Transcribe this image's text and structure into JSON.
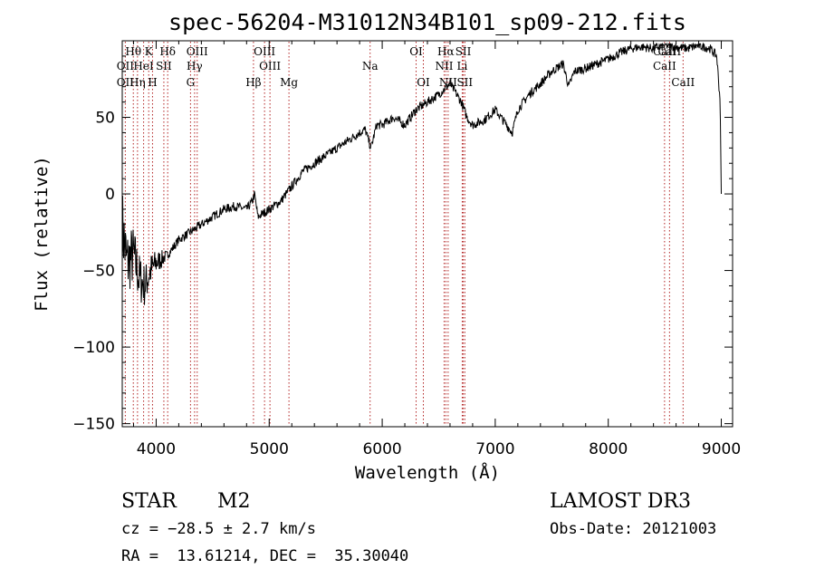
{
  "chart_data": {
    "type": "line",
    "title": "spec-56204-M31012N34B101_sp09-212.fits",
    "xlabel": "Wavelength (Å)",
    "ylabel": "Flux (relative)",
    "xlim": [
      3700,
      9100
    ],
    "ylim": [
      -152,
      100
    ],
    "xticks": [
      4000,
      5000,
      6000,
      7000,
      8000,
      9000
    ],
    "xtick_labels": [
      "4000",
      "5000",
      "6000",
      "7000",
      "8000",
      "9000"
    ],
    "yticks": [
      50,
      0,
      -50,
      -100,
      -150
    ],
    "ytick_labels": [
      "50",
      "0",
      "−50",
      "−100",
      "−150"
    ],
    "spectrum_anchors": [
      [
        3700,
        -20
      ],
      [
        3740,
        -45
      ],
      [
        3800,
        -40
      ],
      [
        3850,
        -55
      ],
      [
        3900,
        -60
      ],
      [
        3950,
        -50
      ],
      [
        4000,
        -45
      ],
      [
        4100,
        -40
      ],
      [
        4200,
        -30
      ],
      [
        4300,
        -25
      ],
      [
        4400,
        -20
      ],
      [
        4500,
        -15
      ],
      [
        4600,
        -10
      ],
      [
        4700,
        -8
      ],
      [
        4800,
        -10
      ],
      [
        4850,
        -5
      ],
      [
        4870,
        0
      ],
      [
        4900,
        -15
      ],
      [
        5000,
        -10
      ],
      [
        5100,
        -5
      ],
      [
        5200,
        5
      ],
      [
        5300,
        15
      ],
      [
        5400,
        20
      ],
      [
        5500,
        25
      ],
      [
        5600,
        30
      ],
      [
        5700,
        35
      ],
      [
        5800,
        40
      ],
      [
        5850,
        42
      ],
      [
        5900,
        30
      ],
      [
        5950,
        45
      ],
      [
        6000,
        45
      ],
      [
        6100,
        50
      ],
      [
        6200,
        45
      ],
      [
        6300,
        55
      ],
      [
        6400,
        60
      ],
      [
        6500,
        65
      ],
      [
        6600,
        72
      ],
      [
        6700,
        60
      ],
      [
        6750,
        50
      ],
      [
        6800,
        45
      ],
      [
        6900,
        48
      ],
      [
        7000,
        55
      ],
      [
        7100,
        45
      ],
      [
        7150,
        40
      ],
      [
        7200,
        55
      ],
      [
        7300,
        65
      ],
      [
        7400,
        72
      ],
      [
        7500,
        80
      ],
      [
        7600,
        85
      ],
      [
        7650,
        70
      ],
      [
        7700,
        80
      ],
      [
        7800,
        82
      ],
      [
        7900,
        85
      ],
      [
        8000,
        88
      ],
      [
        8100,
        92
      ],
      [
        8200,
        95
      ],
      [
        8300,
        96
      ],
      [
        8400,
        95
      ],
      [
        8500,
        97
      ],
      [
        8600,
        96
      ],
      [
        8700,
        95
      ],
      [
        8800,
        97
      ],
      [
        8900,
        95
      ],
      [
        8960,
        90
      ],
      [
        8990,
        60
      ],
      [
        9000,
        0
      ]
    ],
    "spectral_lines": [
      {
        "label": "Hθ",
        "wavelength": 3798,
        "row": 1
      },
      {
        "label": "K",
        "wavelength": 3934,
        "row": 1
      },
      {
        "label": "Hδ",
        "wavelength": 4102,
        "row": 1
      },
      {
        "label": "OIII",
        "wavelength": 4363,
        "row": 1
      },
      {
        "label": "OIII",
        "wavelength": 4959,
        "row": 1
      },
      {
        "label": "OI",
        "wavelength": 6300,
        "row": 1
      },
      {
        "label": "Hα",
        "wavelength": 6563,
        "row": 1
      },
      {
        "label": "SII",
        "wavelength": 6717,
        "row": 1
      },
      {
        "label": "CaII",
        "wavelength": 8498,
        "row": 1
      },
      {
        "label": "CaII",
        "wavelength": 8542,
        "row": 1
      },
      {
        "label": "OII",
        "wavelength": 3727,
        "row": 2
      },
      {
        "label": "HeI",
        "wavelength": 3889,
        "row": 2
      },
      {
        "label": "SII",
        "wavelength": 4068,
        "row": 2
      },
      {
        "label": "Hγ",
        "wavelength": 4340,
        "row": 2
      },
      {
        "label": "OIII",
        "wavelength": 5007,
        "row": 2
      },
      {
        "label": "Na",
        "wavelength": 5893,
        "row": 2
      },
      {
        "label": "NII",
        "wavelength": 6548,
        "row": 2
      },
      {
        "label": "Li",
        "wavelength": 6708,
        "row": 2
      },
      {
        "label": "CaII",
        "wavelength": 8498,
        "row": 2
      },
      {
        "label": "OII",
        "wavelength": 3727,
        "row": 3
      },
      {
        "label": "Hη",
        "wavelength": 3835,
        "row": 3
      },
      {
        "label": "H",
        "wavelength": 3968,
        "row": 3
      },
      {
        "label": "G",
        "wavelength": 4304,
        "row": 3
      },
      {
        "label": "Hβ",
        "wavelength": 4861,
        "row": 3
      },
      {
        "label": "Mg",
        "wavelength": 5175,
        "row": 3
      },
      {
        "label": "OI",
        "wavelength": 6364,
        "row": 3
      },
      {
        "label": "NII",
        "wavelength": 6583,
        "row": 3
      },
      {
        "label": "SII",
        "wavelength": 6731,
        "row": 3
      },
      {
        "label": "CaII",
        "wavelength": 8662,
        "row": 3
      }
    ]
  },
  "info": {
    "object_class": "STAR",
    "subclass": "M2",
    "survey": "LAMOST DR3",
    "redshift": "cz = −28.5 ± 2.7 km/s",
    "obs_date": "Obs-Date: 20121003",
    "coords": "RA =  13.61214, DEC =  35.30040"
  },
  "colors": {
    "spectrum": "#000000",
    "line_marker": "#b22222",
    "axes": "#000000"
  }
}
